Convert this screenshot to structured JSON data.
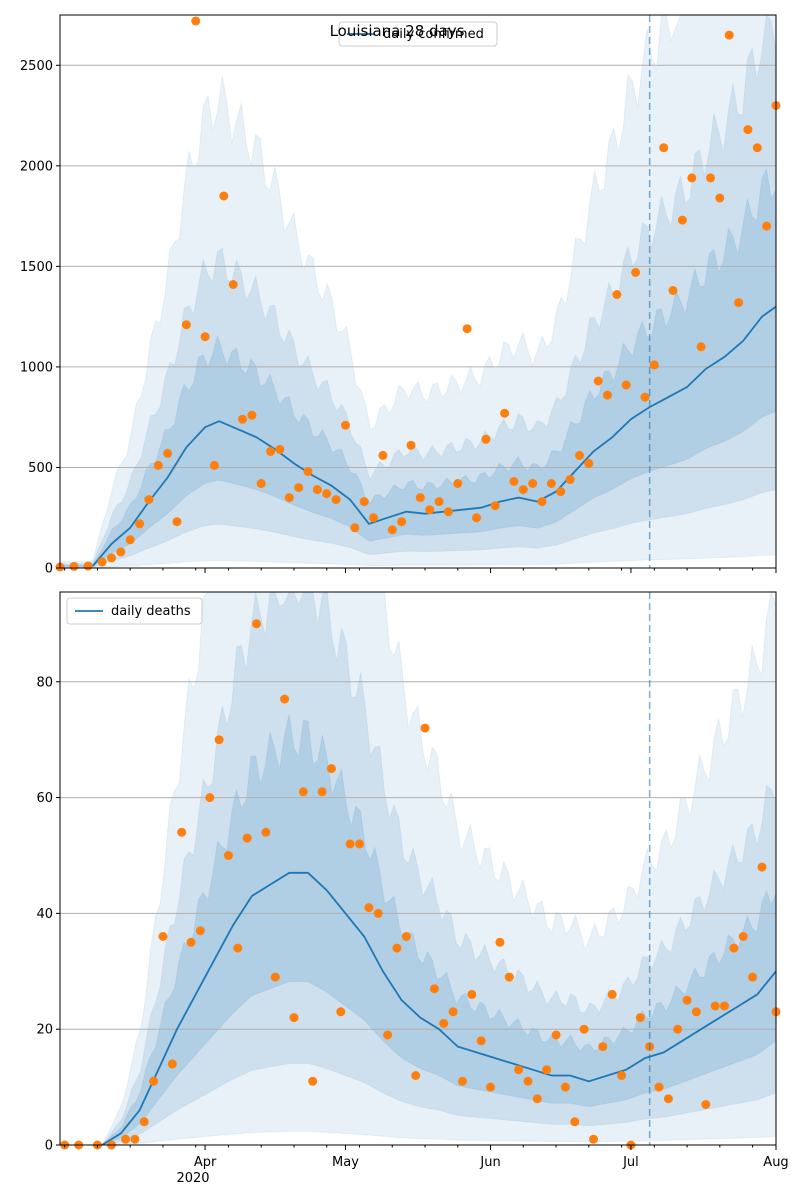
{
  "chart_data": [
    {
      "type": "line",
      "title": "Louisiana 28 days",
      "xlabel": "",
      "ylabel": "",
      "x_tick_labels": [
        "Apr",
        "May",
        "Jun",
        "Jul",
        "Aug"
      ],
      "x_year_label": "2020",
      "xlim": [
        "2020-03-01",
        "2020-08-01"
      ],
      "ylim": [
        0,
        2750
      ],
      "y_ticks": [
        0,
        500,
        1000,
        1500,
        2000,
        2500
      ],
      "grid": "horizontal",
      "legend_placement": "top-center",
      "projection_start": "2020-07-05",
      "colors": {
        "line": "#1f77b4",
        "points": "#ff7f0e",
        "band": "#1f77b4",
        "grid": "#b0b0b0"
      },
      "series": [
        {
          "name": "daily confirmed",
          "kind": "line",
          "x": [
            "2020-03-08",
            "2020-03-12",
            "2020-03-16",
            "2020-03-20",
            "2020-03-24",
            "2020-03-28",
            "2020-04-01",
            "2020-04-04",
            "2020-04-08",
            "2020-04-12",
            "2020-04-16",
            "2020-04-20",
            "2020-04-24",
            "2020-04-28",
            "2020-05-02",
            "2020-05-06",
            "2020-05-10",
            "2020-05-14",
            "2020-05-18",
            "2020-05-22",
            "2020-05-26",
            "2020-05-30",
            "2020-06-03",
            "2020-06-07",
            "2020-06-11",
            "2020-06-15",
            "2020-06-19",
            "2020-06-23",
            "2020-06-27",
            "2020-07-01",
            "2020-07-05",
            "2020-07-09",
            "2020-07-13",
            "2020-07-17",
            "2020-07-21",
            "2020-07-25",
            "2020-07-29",
            "2020-08-01"
          ],
          "y": [
            10,
            120,
            200,
            330,
            450,
            600,
            700,
            730,
            690,
            650,
            590,
            520,
            460,
            410,
            340,
            220,
            250,
            280,
            270,
            280,
            290,
            300,
            330,
            350,
            330,
            380,
            480,
            580,
            650,
            740,
            800,
            850,
            900,
            990,
            1050,
            1130,
            1250,
            1300
          ]
        },
        {
          "name": "",
          "kind": "points",
          "x": [
            "2020-03-01",
            "2020-03-04",
            "2020-03-07",
            "2020-03-10",
            "2020-03-12",
            "2020-03-14",
            "2020-03-16",
            "2020-03-18",
            "2020-03-20",
            "2020-03-22",
            "2020-03-24",
            "2020-03-26",
            "2020-03-28",
            "2020-03-30",
            "2020-04-01",
            "2020-04-03",
            "2020-04-05",
            "2020-04-07",
            "2020-04-09",
            "2020-04-11",
            "2020-04-13",
            "2020-04-15",
            "2020-04-17",
            "2020-04-19",
            "2020-04-21",
            "2020-04-23",
            "2020-04-25",
            "2020-04-27",
            "2020-04-29",
            "2020-05-01",
            "2020-05-03",
            "2020-05-05",
            "2020-05-07",
            "2020-05-09",
            "2020-05-11",
            "2020-05-13",
            "2020-05-15",
            "2020-05-17",
            "2020-05-19",
            "2020-05-21",
            "2020-05-23",
            "2020-05-25",
            "2020-05-27",
            "2020-05-29",
            "2020-05-31",
            "2020-06-02",
            "2020-06-04",
            "2020-06-06",
            "2020-06-08",
            "2020-06-10",
            "2020-06-12",
            "2020-06-14",
            "2020-06-16",
            "2020-06-18",
            "2020-06-20",
            "2020-06-22",
            "2020-06-24",
            "2020-06-26",
            "2020-06-28",
            "2020-06-30",
            "2020-07-02",
            "2020-07-04",
            "2020-07-06",
            "2020-07-08",
            "2020-07-10",
            "2020-07-12",
            "2020-07-14",
            "2020-07-16",
            "2020-07-18",
            "2020-07-20",
            "2020-07-22",
            "2020-07-24",
            "2020-07-26",
            "2020-07-28",
            "2020-07-30",
            "2020-08-01"
          ],
          "y": [
            5,
            8,
            10,
            30,
            50,
            80,
            140,
            220,
            340,
            510,
            570,
            230,
            1210,
            2720,
            1150,
            510,
            1850,
            1410,
            740,
            760,
            420,
            580,
            590,
            350,
            400,
            480,
            390,
            370,
            340,
            710,
            200,
            330,
            250,
            560,
            190,
            230,
            610,
            350,
            290,
            330,
            280,
            420,
            1190,
            250,
            640,
            310,
            770,
            430,
            390,
            420,
            330,
            420,
            380,
            440,
            560,
            520,
            930,
            860,
            1360,
            910,
            1470,
            850,
            1010,
            2090,
            1380,
            1730,
            1940,
            1100,
            1940,
            1840,
            2650,
            1320,
            2180,
            2090,
            1700,
            2300
          ]
        }
      ]
    },
    {
      "type": "line",
      "title": "",
      "xlabel": "",
      "ylabel": "",
      "x_tick_labels": [
        "Apr",
        "May",
        "Jun",
        "Jul",
        "Aug"
      ],
      "x_year_label": "2020",
      "xlim": [
        "2020-03-01",
        "2020-08-01"
      ],
      "ylim": [
        0,
        95.5
      ],
      "y_ticks": [
        0,
        20,
        40,
        60,
        80
      ],
      "grid": "horizontal",
      "legend_placement": "top-left",
      "projection_start": "2020-07-05",
      "colors": {
        "line": "#1f77b4",
        "points": "#ff7f0e",
        "band": "#1f77b4",
        "grid": "#b0b0b0"
      },
      "series": [
        {
          "name": "daily deaths",
          "kind": "line",
          "x": [
            "2020-03-10",
            "2020-03-14",
            "2020-03-18",
            "2020-03-22",
            "2020-03-26",
            "2020-03-30",
            "2020-04-03",
            "2020-04-07",
            "2020-04-11",
            "2020-04-15",
            "2020-04-19",
            "2020-04-23",
            "2020-04-27",
            "2020-05-01",
            "2020-05-05",
            "2020-05-09",
            "2020-05-13",
            "2020-05-17",
            "2020-05-21",
            "2020-05-25",
            "2020-05-29",
            "2020-06-02",
            "2020-06-06",
            "2020-06-10",
            "2020-06-14",
            "2020-06-18",
            "2020-06-22",
            "2020-06-26",
            "2020-06-30",
            "2020-07-04",
            "2020-07-08",
            "2020-07-12",
            "2020-07-16",
            "2020-07-20",
            "2020-07-24",
            "2020-07-28",
            "2020-08-01"
          ],
          "y": [
            0,
            2,
            6,
            13,
            20,
            26,
            32,
            38,
            43,
            45,
            47,
            47,
            44,
            40,
            36,
            30,
            25,
            22,
            20,
            17,
            16,
            15,
            14,
            13,
            12,
            12,
            11,
            12,
            13,
            15,
            16,
            18,
            20,
            22,
            24,
            26,
            30
          ]
        },
        {
          "name": "",
          "kind": "points",
          "x": [
            "2020-03-02",
            "2020-03-05",
            "2020-03-09",
            "2020-03-12",
            "2020-03-15",
            "2020-03-17",
            "2020-03-19",
            "2020-03-21",
            "2020-03-23",
            "2020-03-25",
            "2020-03-27",
            "2020-03-29",
            "2020-03-31",
            "2020-04-02",
            "2020-04-04",
            "2020-04-06",
            "2020-04-08",
            "2020-04-10",
            "2020-04-12",
            "2020-04-14",
            "2020-04-16",
            "2020-04-18",
            "2020-04-20",
            "2020-04-22",
            "2020-04-24",
            "2020-04-26",
            "2020-04-28",
            "2020-04-30",
            "2020-05-02",
            "2020-05-04",
            "2020-05-06",
            "2020-05-08",
            "2020-05-10",
            "2020-05-12",
            "2020-05-14",
            "2020-05-16",
            "2020-05-18",
            "2020-05-20",
            "2020-05-22",
            "2020-05-24",
            "2020-05-26",
            "2020-05-28",
            "2020-05-30",
            "2020-06-01",
            "2020-06-03",
            "2020-06-05",
            "2020-06-07",
            "2020-06-09",
            "2020-06-11",
            "2020-06-13",
            "2020-06-15",
            "2020-06-17",
            "2020-06-19",
            "2020-06-21",
            "2020-06-23",
            "2020-06-25",
            "2020-06-27",
            "2020-06-29",
            "2020-07-01",
            "2020-07-03",
            "2020-07-05",
            "2020-07-07",
            "2020-07-09",
            "2020-07-11",
            "2020-07-13",
            "2020-07-15",
            "2020-07-17",
            "2020-07-19",
            "2020-07-21",
            "2020-07-23",
            "2020-07-25",
            "2020-07-27",
            "2020-07-29",
            "2020-08-01"
          ],
          "y": [
            0,
            0,
            0,
            0,
            1,
            1,
            4,
            11,
            36,
            14,
            54,
            35,
            37,
            60,
            70,
            50,
            34,
            53,
            90,
            54,
            29,
            77,
            22,
            61,
            11,
            61,
            65,
            23,
            52,
            52,
            41,
            40,
            19,
            34,
            36,
            12,
            72,
            27,
            21,
            23,
            11,
            26,
            18,
            10,
            35,
            29,
            13,
            11,
            8,
            13,
            19,
            10,
            4,
            20,
            1,
            17,
            26,
            12,
            0,
            22,
            17,
            10,
            8,
            20,
            25,
            23,
            7,
            24,
            24,
            34,
            36,
            29,
            48,
            23
          ]
        }
      ]
    }
  ]
}
